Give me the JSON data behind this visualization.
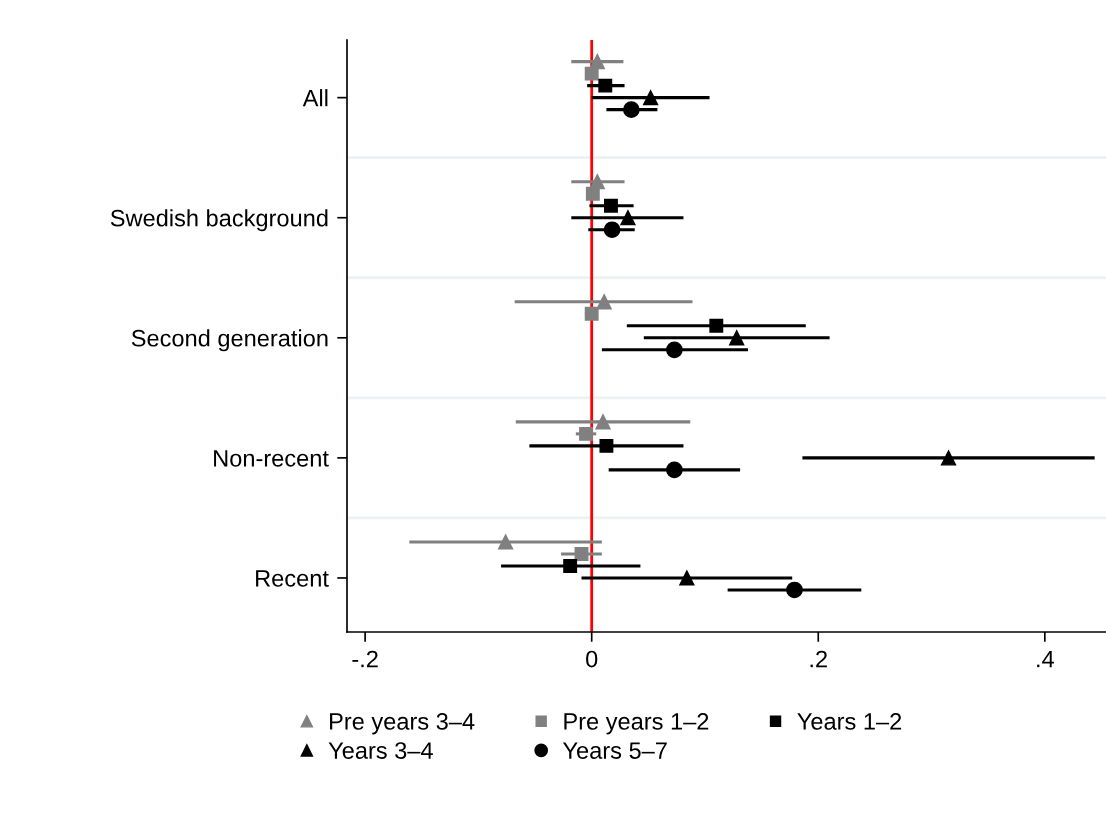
{
  "chart_data": {
    "type": "scatter",
    "orientation": "horizontal",
    "categories": [
      "All",
      "Swedish background",
      "Second generation",
      "Non-recent",
      "Recent"
    ],
    "xlim": [
      -0.216,
      0.454
    ],
    "xticks": [
      {
        "value": -0.2,
        "label": "-.2"
      },
      0,
      {
        "value": 0.2,
        "label": ".2"
      },
      {
        "value": 0.4,
        "label": ".4"
      }
    ],
    "grid": "y",
    "legend": "bottom",
    "ref_lines": [
      {
        "axis": "x",
        "value": 0,
        "color": "#ff0000"
      }
    ],
    "series": [
      {
        "name": "Pre years 3–4",
        "color": "#808080",
        "marker": "triangle",
        "values": [
          0.005,
          0.005,
          0.011,
          0.01,
          -0.076
        ],
        "errors": [
          [
            -0.018,
            0.028
          ],
          [
            -0.018,
            0.029
          ],
          [
            -0.068,
            0.089
          ],
          [
            -0.067,
            0.087
          ],
          [
            -0.161,
            0.009
          ]
        ]
      },
      {
        "name": "Pre years 1–2",
        "color": "#808080",
        "marker": "square",
        "values": [
          0.0,
          0.001,
          0.0,
          -0.005,
          -0.009
        ],
        "errors": [
          null,
          null,
          [
            -0.006,
            0.005
          ],
          [
            -0.014,
            0.004
          ],
          [
            -0.027,
            0.009
          ]
        ]
      },
      {
        "name": "Years 1–2",
        "color": "#000000",
        "marker": "square",
        "values": [
          0.012,
          0.017,
          0.11,
          0.013,
          -0.019
        ],
        "errors": [
          [
            -0.004,
            0.029
          ],
          [
            -0.002,
            0.037
          ],
          [
            0.031,
            0.189
          ],
          [
            -0.055,
            0.081
          ],
          [
            -0.08,
            0.043
          ]
        ]
      },
      {
        "name": "Years 3–4",
        "color": "#000000",
        "marker": "triangle",
        "values": [
          0.052,
          0.032,
          0.128,
          0.315,
          0.084
        ],
        "errors": [
          [
            0.0,
            0.104
          ],
          [
            -0.018,
            0.081
          ],
          [
            0.046,
            0.21
          ],
          [
            0.186,
            0.444
          ],
          [
            -0.009,
            0.177
          ]
        ]
      },
      {
        "name": "Years 5–7",
        "color": "#000000",
        "marker": "circle",
        "values": [
          0.035,
          0.018,
          0.073,
          0.073,
          0.179
        ],
        "errors": [
          [
            0.013,
            0.058
          ],
          [
            -0.003,
            0.038
          ],
          [
            0.009,
            0.138
          ],
          [
            0.015,
            0.131
          ],
          [
            0.12,
            0.238
          ]
        ]
      }
    ]
  }
}
